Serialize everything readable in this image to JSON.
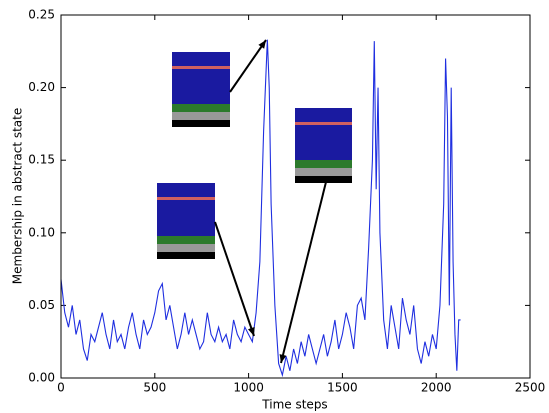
{
  "chart_data": {
    "type": "line",
    "x_label": "Time steps",
    "y_label": "Membership in abstract state",
    "xlim": [
      0,
      2500
    ],
    "xticks": [
      0,
      500,
      1000,
      1500,
      2000,
      2500
    ],
    "ylim": [
      0,
      0.25
    ],
    "yticks": [
      {
        "value": 0,
        "label": "0.00"
      },
      0.05,
      {
        "value": 0.1,
        "label": "0.10"
      },
      0.15,
      {
        "value": 0.2,
        "label": "0.20"
      },
      0.25
    ],
    "x": [
      0,
      20,
      40,
      60,
      80,
      100,
      120,
      140,
      160,
      180,
      200,
      220,
      240,
      260,
      280,
      300,
      320,
      340,
      360,
      380,
      400,
      420,
      440,
      460,
      480,
      500,
      520,
      540,
      560,
      580,
      600,
      620,
      640,
      660,
      680,
      700,
      720,
      740,
      760,
      780,
      800,
      820,
      840,
      860,
      880,
      900,
      920,
      940,
      960,
      980,
      1000,
      1020,
      1040,
      1060,
      1080,
      1100,
      1110,
      1120,
      1140,
      1160,
      1180,
      1200,
      1220,
      1240,
      1260,
      1280,
      1300,
      1320,
      1340,
      1360,
      1380,
      1400,
      1420,
      1440,
      1460,
      1480,
      1500,
      1520,
      1540,
      1560,
      1580,
      1600,
      1620,
      1640,
      1660,
      1670,
      1680,
      1690,
      1700,
      1720,
      1740,
      1760,
      1780,
      1800,
      1820,
      1840,
      1860,
      1880,
      1900,
      1920,
      1940,
      1960,
      1980,
      2000,
      2020,
      2040,
      2050,
      2060,
      2070,
      2080,
      2090,
      2100,
      2110,
      2120,
      2130
    ],
    "series": [
      {
        "color": "#1f2fe0",
        "values": [
          0.068,
          0.045,
          0.035,
          0.05,
          0.03,
          0.04,
          0.02,
          0.012,
          0.03,
          0.025,
          0.035,
          0.045,
          0.03,
          0.02,
          0.04,
          0.025,
          0.03,
          0.02,
          0.035,
          0.045,
          0.03,
          0.02,
          0.04,
          0.03,
          0.035,
          0.045,
          0.06,
          0.065,
          0.04,
          0.05,
          0.035,
          0.02,
          0.03,
          0.045,
          0.03,
          0.04,
          0.03,
          0.02,
          0.025,
          0.045,
          0.03,
          0.025,
          0.035,
          0.025,
          0.03,
          0.02,
          0.04,
          0.03,
          0.025,
          0.035,
          0.03,
          0.025,
          0.045,
          0.08,
          0.17,
          0.233,
          0.2,
          0.12,
          0.05,
          0.01,
          0.002,
          0.015,
          0.005,
          0.02,
          0.01,
          0.025,
          0.015,
          0.03,
          0.02,
          0.01,
          0.02,
          0.03,
          0.015,
          0.025,
          0.04,
          0.02,
          0.03,
          0.045,
          0.035,
          0.02,
          0.05,
          0.055,
          0.04,
          0.09,
          0.15,
          0.232,
          0.13,
          0.2,
          0.1,
          0.04,
          0.02,
          0.05,
          0.035,
          0.02,
          0.055,
          0.04,
          0.03,
          0.05,
          0.02,
          0.01,
          0.025,
          0.015,
          0.03,
          0.02,
          0.05,
          0.12,
          0.22,
          0.18,
          0.05,
          0.2,
          0.08,
          0.03,
          0.005,
          0.04,
          0.04
        ]
      }
    ]
  }
}
